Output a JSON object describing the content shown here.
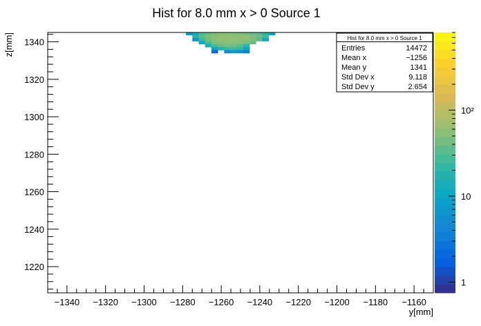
{
  "chart_data": {
    "type": "heatmap",
    "title": "Hist for 8.0 mm x > 0 Source 1",
    "xlabel": "y[mm]",
    "ylabel": "z[mm]",
    "xlim": [
      -1350,
      -1150
    ],
    "ylim": [
      1206,
      1345
    ],
    "x_ticks": [
      -1340,
      -1320,
      -1300,
      -1280,
      -1260,
      -1240,
      -1220,
      -1200,
      -1180,
      -1160
    ],
    "y_ticks": [
      1220,
      1240,
      1260,
      1280,
      1300,
      1320,
      1340
    ],
    "color_scale": "log",
    "z_range": [
      0.75,
      800
    ],
    "colorbar_ticks": [
      {
        "value": 1,
        "label": "1"
      },
      {
        "value": 10,
        "label": "10"
      },
      {
        "value": 100,
        "label": "10²"
      }
    ],
    "bin_width_mm": 3.3,
    "bin_height_mm": 1.6,
    "rows": [
      {
        "z": 1344.4,
        "y_from": -1278.3,
        "y_to": -1235.4,
        "counts": [
          8,
          15,
          30,
          40,
          48,
          52,
          52,
          50,
          48,
          45,
          40,
          32,
          20,
          10
        ]
      },
      {
        "z": 1342.8,
        "y_from": -1275.0,
        "y_to": -1238.7,
        "counts": [
          18,
          35,
          48,
          55,
          58,
          60,
          60,
          58,
          56,
          50,
          40,
          25
        ]
      },
      {
        "z": 1341.2,
        "y_from": -1275.0,
        "y_to": -1238.7,
        "counts": [
          6,
          25,
          45,
          55,
          58,
          60,
          60,
          58,
          56,
          50,
          35,
          12
        ]
      },
      {
        "z": 1339.6,
        "y_from": -1271.7,
        "y_to": -1242.0,
        "counts": [
          12,
          30,
          45,
          52,
          55,
          55,
          52,
          48,
          38
        ]
      },
      {
        "z": 1338.0,
        "y_from": -1268.4,
        "y_to": -1245.3,
        "counts": [
          15,
          30,
          40,
          45,
          42,
          35,
          20
        ]
      },
      {
        "z": 1336.4,
        "y_from": -1265.1,
        "y_to": -1245.3,
        "counts": [
          10,
          18,
          25,
          28,
          22,
          12
        ]
      },
      {
        "z": 1334.8,
        "y_from": -1265.1,
        "y_to": -1245.3,
        "counts": [
          2,
          0,
          5,
          8,
          6,
          4
        ]
      }
    ],
    "stats": {
      "title": "Hist for 8.0 mm x > 0 Source 1",
      "entries": [
        {
          "label": "Entries",
          "value": "14472"
        },
        {
          "label": "Mean x",
          "value": "−1256"
        },
        {
          "label": "Mean y",
          "value": "1341"
        },
        {
          "label": "Std Dev x",
          "value": "9.118"
        },
        {
          "label": "Std Dev y",
          "value": "2.654"
        }
      ]
    }
  }
}
